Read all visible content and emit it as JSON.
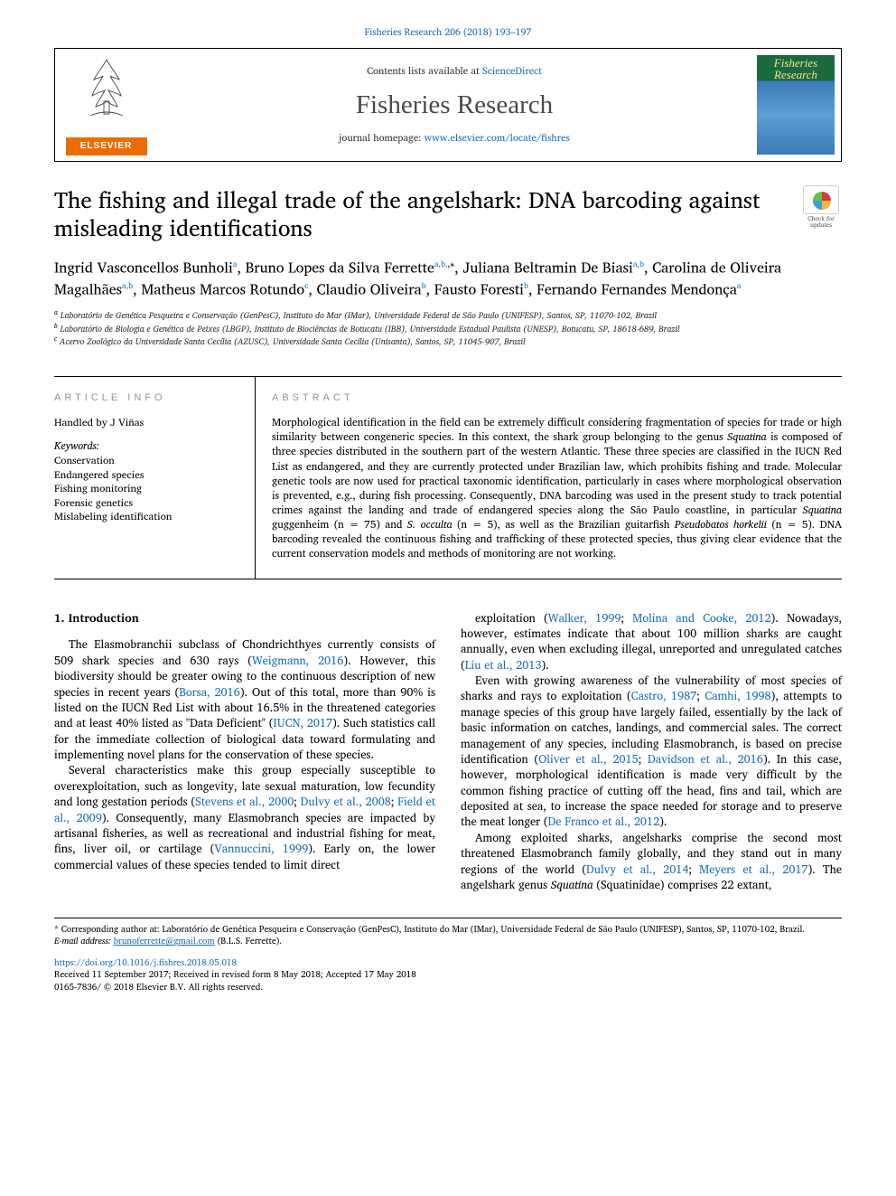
{
  "header_link": "Fisheries Research 206 (2018) 193–197",
  "header": {
    "contents_prefix": "Contents lists available at ",
    "contents_link": "ScienceDirect",
    "journal_name": "Fisheries Research",
    "homepage_prefix": "journal homepage: ",
    "homepage_url": "www.elsevier.com/locate/fishres",
    "elsevier_name": "ELSEVIER",
    "cover_title_line1": "Fisheries",
    "cover_title_line2": "Research"
  },
  "title": "The fishing and illegal trade of the angelshark: DNA barcoding against misleading identifications",
  "check_updates": "Check for updates",
  "authors_html": "Ingrid Vasconcellos Bunholi<sup>a</sup>, Bruno Lopes da Silva Ferrette<sup>a,b,*</sup>, Juliana Beltramin De Biasi<sup>a,b</sup>, Carolina de Oliveira Magalhães<sup>a,b</sup>, Matheus Marcos Rotundo<sup>c</sup>, Claudio Oliveira<sup>b</sup>, Fausto Foresti<sup>b</sup>, Fernando Fernandes Mendonça<sup>a</sup>",
  "affiliations": [
    "a Laboratório de Genética Pesqueira e Conservação (GenPesC), Instituto do Mar (IMar), Universidade Federal de São Paulo (UNIFESP), Santos, SP, 11070-102, Brazil",
    "b Laboratório de Biologia e Genética de Peixes (LBGP), Instituto de Biociências de Botucatu (IBB), Universidade Estadual Paulista (UNESP), Botucatu, SP, 18618-689, Brazil",
    "c Acervo Zoológico da Universidade Santa Cecília (AZUSC), Universidade Santa Cecília (Unisanta), Santos, SP, 11045-907, Brazil"
  ],
  "article_info": {
    "heading": "ARTICLE INFO",
    "handled_by": "Handled by J Viñas",
    "keywords_label": "Keywords:",
    "keywords": [
      "Conservation",
      "Endangered species",
      "Fishing monitoring",
      "Forensic genetics",
      "Mislabeling identification"
    ]
  },
  "abstract": {
    "heading": "ABSTRACT",
    "text": "Morphological identification in the field can be extremely difficult considering fragmentation of species for trade or high similarity between congeneric species. In this context, the shark group belonging to the genus Squatina is composed of three species distributed in the southern part of the western Atlantic. These three species are classified in the IUCN Red List as endangered, and they are currently protected under Brazilian law, which prohibits fishing and trade. Molecular genetic tools are now used for practical taxonomic identification, particularly in cases where morphological observation is prevented, e.g., during fish processing. Consequently, DNA barcoding was used in the present study to track potential crimes against the landing and trade of endangered species along the São Paulo coastline, in particular Squatina guggenheim (n = 75) and S. occulta (n = 5), as well as the Brazilian guitarfish Pseudobatos horkelii (n = 5). DNA barcoding revealed the continuous fishing and trafficking of these protected species, thus giving clear evidence that the current conservation models and methods of monitoring are not working."
  },
  "intro_heading": "1. Introduction",
  "body_paragraphs": [
    "The Elasmobranchii subclass of Chondrichthyes currently consists of 509 shark species and 630 rays (Weigmann, 2016). However, this biodiversity should be greater owing to the continuous description of new species in recent years (Borsa, 2016). Out of this total, more than 90% is listed on the IUCN Red List with about 16.5% in the threatened categories and at least 40% listed as \"Data Deficient\" (IUCN, 2017). Such statistics call for the immediate collection of biological data toward formulating and implementing novel plans for the conservation of these species.",
    "Several characteristics make this group especially susceptible to overexploitation, such as longevity, late sexual maturation, low fecundity and long gestation periods (Stevens et al., 2000; Dulvy et al., 2008; Field et al., 2009). Consequently, many Elasmobranch species are impacted by artisanal fisheries, as well as recreational and industrial fishing for meat, fins, liver oil, or cartilage (Vannuccini, 1999). Early on, the lower commercial values of these species tended to limit direct",
    "exploitation (Walker, 1999; Molina and Cooke, 2012). Nowadays, however, estimates indicate that about 100 million sharks are caught annually, even when excluding illegal, unreported and unregulated catches (Liu et al., 2013).",
    "Even with growing awareness of the vulnerability of most species of sharks and rays to exploitation (Castro, 1987; Camhi, 1998), attempts to manage species of this group have largely failed, essentially by the lack of basic information on catches, landings, and commercial sales. The correct management of any species, including Elasmobranch, is based on precise identification (Oliver et al., 2015; Davidson et al., 2016). In this case, however, morphological identification is made very difficult by the common fishing practice of cutting off the head, fins and tail, which are deposited at sea, to increase the space needed for storage and to preserve the meat longer (De Franco et al., 2012).",
    "Among exploited sharks, angelsharks comprise the second most threatened Elasmobranch family globally, and they stand out in many regions of the world (Dulvy et al., 2014; Meyers et al., 2017). The angelshark genus Squatina (Squatinidae) comprises 22 extant,"
  ],
  "citation_phrases": [
    "Weigmann, 2016",
    "Borsa, 2016",
    "IUCN, 2017",
    "Stevens et al., 2000",
    "Dulvy et al., 2008",
    "Field et al., 2009",
    "Vannuccini, 1999",
    "Walker, 1999",
    "Molina and Cooke, 2012",
    "Liu et al., 2013",
    "Castro, 1987",
    "Camhi, 1998",
    "Oliver et al., 2015",
    "Davidson et al., 2016",
    "De Franco et al., 2012",
    "Dulvy et al., 2014",
    "Meyers et al., 2017"
  ],
  "italic_species": [
    "Squatina",
    "Squatina guggenheim",
    "S. occulta",
    "Pseudobatos horkelii"
  ],
  "footnote": {
    "corresponding": "* Corresponding author at: Laboratório de Genética Pesqueira e Conservação (GenPesC), Instituto do Mar (IMar), Universidade Federal de São Paulo (UNIFESP), Santos, SP, 11070-102, Brazil.",
    "email_label": "E-mail address:",
    "email": "brunoferrette@gmail.com",
    "email_who": "(B.L.S. Ferrette)."
  },
  "doi": "https://doi.org/10.1016/j.fishres.2018.05.018",
  "received": "Received 11 September 2017; Received in revised form 8 May 2018; Accepted 17 May 2018",
  "copyright": "0165-7836/ © 2018 Elsevier B.V. All rights reserved.",
  "colors": {
    "link": "#1a6eb4",
    "elsevier_orange": "#eb6c05",
    "gray_caps": "#949494",
    "text": "#000000"
  },
  "typography": {
    "title_fontsize": 25,
    "journal_name_fontsize": 29,
    "authors_fontsize": 16,
    "body_fontsize": 12.6,
    "abstract_fontsize": 11.7,
    "footnote_fontsize": 9.8,
    "caps_letterspacing": 4
  }
}
